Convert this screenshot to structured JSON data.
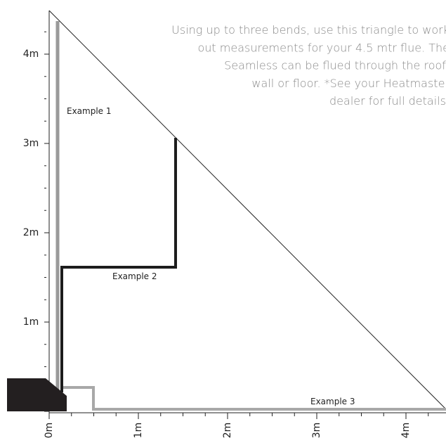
{
  "note_lines": [
    "Using up to three bends, use this triangle to work",
    "out measurements for your 4.5 mtr flue. The",
    "Seamless can be flued through the roof,",
    "wall or floor. *See your Heatmaster",
    "dealer for full details."
  ],
  "y_axis_labels": [
    "4m",
    "3m",
    "2m",
    "1m"
  ],
  "x_axis_labels": [
    "0m",
    "1m",
    "2m",
    "3m",
    "4m"
  ],
  "examples": [
    "Example 1",
    "Example 2",
    "Example 3"
  ]
}
